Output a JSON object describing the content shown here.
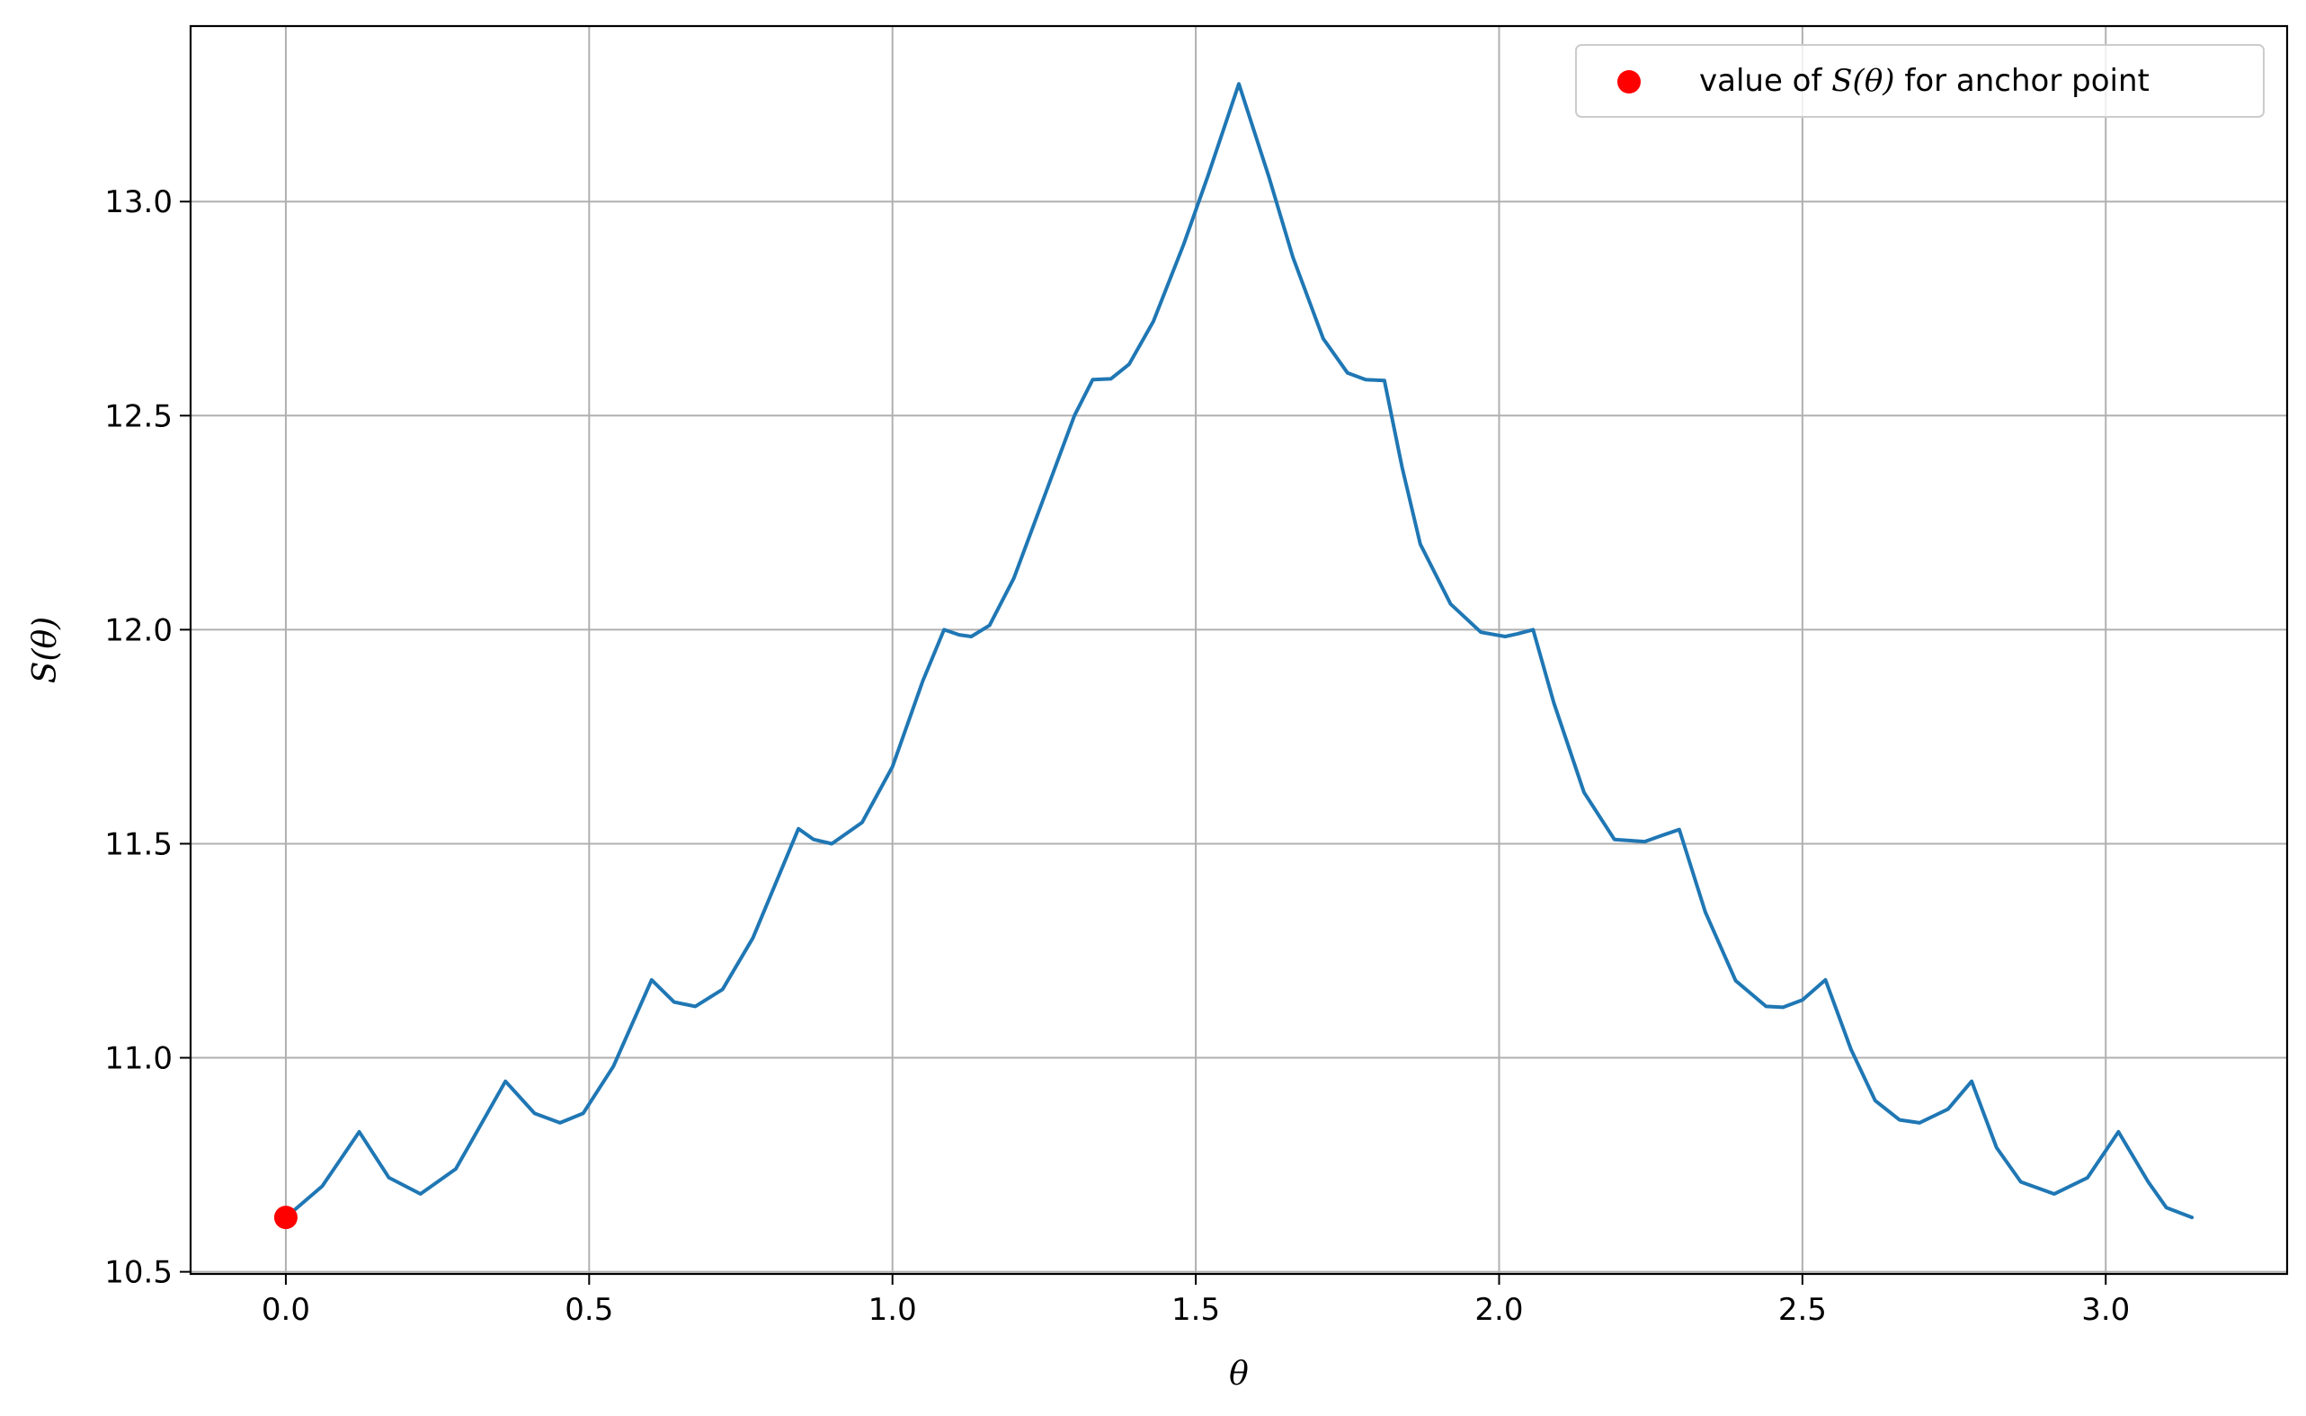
{
  "chart_data": {
    "type": "line",
    "title": "",
    "xlabel": "θ",
    "ylabel": "S(θ)",
    "xlim": [
      -0.157,
      3.299
    ],
    "ylim": [
      10.495,
      13.41
    ],
    "x_ticks": [
      0.0,
      0.5,
      1.0,
      1.5,
      2.0,
      2.5,
      3.0
    ],
    "x_tick_labels": [
      "0.0",
      "0.5",
      "1.0",
      "1.5",
      "2.0",
      "2.5",
      "3.0"
    ],
    "y_ticks": [
      10.5,
      11.0,
      11.5,
      12.0,
      12.5,
      13.0
    ],
    "y_tick_labels": [
      "10.5",
      "11.0",
      "11.5",
      "12.0",
      "12.5",
      "13.0"
    ],
    "grid": true,
    "legend": {
      "placement": "top-right",
      "entries": [
        {
          "label_prefix": "value of ",
          "label_math": "S(θ)",
          "label_suffix": " for anchor point",
          "color": "#ff0000",
          "marker": "circle"
        }
      ]
    },
    "series": [
      {
        "color": "#1f77b4",
        "x": [
          0.0,
          0.06,
          0.121,
          0.17,
          0.222,
          0.28,
          0.32,
          0.362,
          0.41,
          0.452,
          0.49,
          0.54,
          0.603,
          0.64,
          0.675,
          0.72,
          0.77,
          0.845,
          0.87,
          0.9,
          0.95,
          1.0,
          1.05,
          1.085,
          1.11,
          1.13,
          1.16,
          1.2,
          1.25,
          1.3,
          1.33,
          1.36,
          1.39,
          1.43,
          1.48,
          1.52,
          1.571,
          1.62,
          1.66,
          1.71,
          1.75,
          1.78,
          1.811,
          1.84,
          1.87,
          1.92,
          1.97,
          2.01,
          2.03,
          2.056,
          2.09,
          2.14,
          2.19,
          2.24,
          2.27,
          2.297,
          2.34,
          2.39,
          2.44,
          2.468,
          2.5,
          2.538,
          2.58,
          2.62,
          2.66,
          2.693,
          2.74,
          2.779,
          2.82,
          2.86,
          2.915,
          2.97,
          3.021,
          3.07,
          3.1,
          3.142
        ],
        "y": [
          10.627,
          10.7,
          10.827,
          10.72,
          10.682,
          10.74,
          10.84,
          10.945,
          10.87,
          10.848,
          10.87,
          10.98,
          11.182,
          11.13,
          11.12,
          11.16,
          11.28,
          11.535,
          11.51,
          11.5,
          11.55,
          11.68,
          11.88,
          12.0,
          11.988,
          11.984,
          12.01,
          12.12,
          12.31,
          12.5,
          12.584,
          12.586,
          12.62,
          12.72,
          12.9,
          13.06,
          13.275,
          13.06,
          12.87,
          12.68,
          12.6,
          12.584,
          12.582,
          12.38,
          12.2,
          12.06,
          11.994,
          11.984,
          11.99,
          12.0,
          11.83,
          11.62,
          11.51,
          11.505,
          11.52,
          11.533,
          11.34,
          11.18,
          11.12,
          11.118,
          11.135,
          11.182,
          11.02,
          10.9,
          10.855,
          10.848,
          10.88,
          10.945,
          10.79,
          10.71,
          10.682,
          10.72,
          10.827,
          10.71,
          10.65,
          10.627
        ]
      }
    ],
    "anchor_point": {
      "x": 0.0,
      "y": 10.627,
      "color": "#ff0000"
    }
  }
}
